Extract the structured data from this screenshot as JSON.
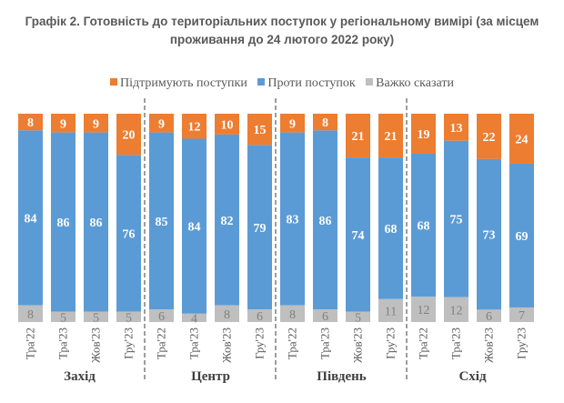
{
  "chart_data": {
    "type": "bar",
    "stacked": true,
    "title_lines": [
      "Графік 2. Готовність до територіальних поступок у регіональному вимірі (за місцем",
      "проживання до 24 лютого 2022 року)"
    ],
    "legend_position": "top",
    "series": [
      {
        "name": "Підтримують поступки",
        "color": "#ED7D31"
      },
      {
        "name": "Проти поступок",
        "color": "#5B9BD5"
      },
      {
        "name": "Важко сказати",
        "color": "#BFBFBF"
      }
    ],
    "groups": [
      {
        "name": "Захід",
        "categories": [
          "Тра'22",
          "Тра'23",
          "Жов'23",
          "Гру'23"
        ],
        "support": [
          8,
          9,
          9,
          20
        ],
        "against": [
          84,
          86,
          86,
          76
        ],
        "unsure": [
          8,
          5,
          5,
          5
        ]
      },
      {
        "name": "Центр",
        "categories": [
          "Тра'22",
          "Тра'23",
          "Жов'23",
          "Гру'23"
        ],
        "support": [
          9,
          12,
          10,
          15
        ],
        "against": [
          85,
          84,
          82,
          79
        ],
        "unsure": [
          6,
          4,
          8,
          6
        ]
      },
      {
        "name": "Південь",
        "categories": [
          "Тра'22",
          "Тра'23",
          "Жов'23",
          "Гру'23"
        ],
        "support": [
          9,
          8,
          21,
          21
        ],
        "against": [
          83,
          86,
          74,
          68
        ],
        "unsure": [
          8,
          6,
          5,
          11
        ]
      },
      {
        "name": "Схід",
        "categories": [
          "Тра'22",
          "Тра'23",
          "Жов'23",
          "Гру'23"
        ],
        "support": [
          19,
          13,
          22,
          24
        ],
        "against": [
          68,
          75,
          73,
          69
        ],
        "unsure": [
          12,
          12,
          6,
          7
        ]
      }
    ],
    "ylim": [
      0,
      100
    ],
    "grid": false
  }
}
